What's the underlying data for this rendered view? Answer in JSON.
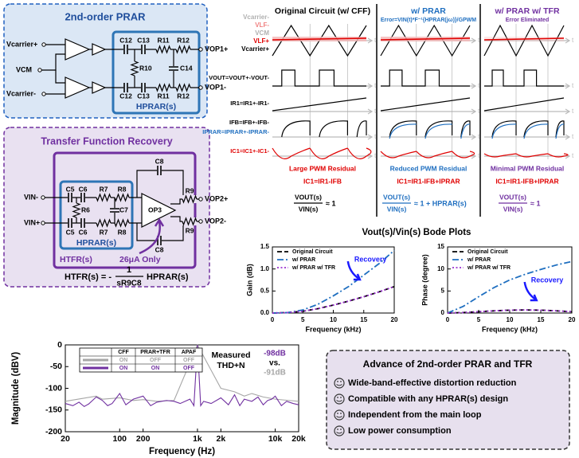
{
  "prar_circuit": {
    "title": "2nd-order PRAR",
    "inputs": [
      "Vcarrier+",
      "VCM",
      "Vcarrier-"
    ],
    "components": [
      "C12",
      "C13",
      "R11",
      "R12",
      "R10",
      "C14"
    ],
    "outputs": [
      "VOP1+",
      "VOP1-"
    ],
    "block": "HPRAR(s)"
  },
  "tfr_circuit": {
    "title": "Transfer Function Recovery",
    "inputs": [
      "VIN-",
      "VIN+"
    ],
    "components": [
      "C5",
      "C6",
      "R7",
      "R8",
      "R6",
      "C7",
      "C8",
      "OP3",
      "R9"
    ],
    "outputs": [
      "VOP2+",
      "VOP2-"
    ],
    "inner_block": "HPRAR(s)",
    "outer_block": "HTFR(s)",
    "annotation": "26μA Only",
    "formula": {
      "lhs": "HTFR(s) = -",
      "numerator": "1",
      "denominator": "sR9C8",
      "rhs": "HPRAR(s)"
    }
  },
  "waveforms": {
    "signal_labels": [
      {
        "text": "Vcarrier-",
        "color": "#b0b0b0"
      },
      {
        "text": "VLF-",
        "color": "#f08080"
      },
      {
        "text": "VCM",
        "color": "#b0b0b0"
      },
      {
        "text": "VLF+",
        "color": "#e00000"
      },
      {
        "text": "Vcarrier+",
        "color": "#000000"
      },
      {
        "text": "VOUT=VOUT+-VOUT-",
        "color": "#000000"
      },
      {
        "text": "IR1=IR1+-IR1-",
        "color": "#000000"
      },
      {
        "text": "IFB=IFB+-IFB-",
        "color": "#000000"
      },
      {
        "text": "IPRAR=IPRAR+-IPRAR-",
        "color": "#1f6fc0"
      },
      {
        "text": "IC1=IC1+-IC1-",
        "color": "#e00000"
      }
    ],
    "time_label": "t",
    "transfer_fraction": {
      "numerator": "VOUT(s)",
      "denominator": "VIN(s)"
    },
    "columns": [
      {
        "title": "Original Circuit (w/ CFF)",
        "color": "#000000",
        "residual": "Large PWM Residual",
        "current": "IC1=IR1-IFB",
        "transfer": "≈ 1"
      },
      {
        "title": "w/ PRAR",
        "color": "#1f6fc0",
        "note": "Error=VIN(t)*F⁻¹{HPRAR(jω)}/GPWM",
        "residual": "Reduced PWM Residual",
        "current": "IC1=IR1-IFB+IPRAR",
        "transfer": "≈ 1 + HPRAR(s)"
      },
      {
        "title": "w/ PRAR w/ TFR",
        "color": "#7030a0",
        "note": "Error Eliminated",
        "residual": "Minimal PWM Residual",
        "current": "IC1=IR1-IFB+IPRAR",
        "transfer": "≈ 1"
      }
    ]
  },
  "bode_title": "Vout(s)/Vin(s) Bode Plots",
  "chart_data": [
    {
      "type": "line",
      "x_label": "Frequency (kHz)",
      "y_label": "Gain (dB)",
      "x": [
        0,
        2.5,
        5,
        7.5,
        10,
        12.5,
        15,
        17.5,
        20
      ],
      "series": [
        {
          "name": "Original Circuit",
          "color": "#000000",
          "dash": "dash",
          "values": [
            0,
            0.01,
            0.04,
            0.1,
            0.18,
            0.27,
            0.37,
            0.48,
            0.6
          ]
        },
        {
          "name": "w/ PRAR",
          "color": "#1f6fc0",
          "dash": "dashdot",
          "values": [
            0,
            0.01,
            0.07,
            0.2,
            0.39,
            0.6,
            0.86,
            1.12,
            1.42
          ]
        },
        {
          "name": "w/ PRAR w/ TFR",
          "color": "#9b30d0",
          "dash": "dot",
          "values": [
            0,
            0.01,
            0.04,
            0.1,
            0.18,
            0.27,
            0.37,
            0.48,
            0.6
          ]
        }
      ],
      "xlim": [
        0,
        20
      ],
      "xticks": [
        0,
        5,
        10,
        15,
        20
      ],
      "ylim": [
        0,
        1.5
      ],
      "yticks": [
        {
          "value": 0,
          "label": "0.0"
        },
        0.5,
        {
          "value": 1,
          "label": "1.0"
        },
        1.5
      ],
      "legend": "top-left",
      "annotation": {
        "text": "Recovery",
        "color": "#1a1aff"
      }
    },
    {
      "type": "line",
      "x_label": "Frequency (kHz)",
      "y_label": "Phase (degree)",
      "x": [
        0,
        2.5,
        5,
        7.5,
        10,
        12.5,
        15,
        17.5,
        20
      ],
      "series": [
        {
          "name": "Original Circuit",
          "color": "#000000",
          "dash": "dash",
          "values": [
            0,
            0.1,
            0.3,
            0.5,
            0.65,
            0.7,
            0.65,
            0.5,
            0.3
          ]
        },
        {
          "name": "w/ PRAR",
          "color": "#1f6fc0",
          "dash": "dashdot",
          "values": [
            0,
            1.5,
            3.7,
            5.8,
            7.5,
            8.8,
            9.9,
            10.9,
            11.7
          ]
        },
        {
          "name": "w/ PRAR w/ TFR",
          "color": "#9b30d0",
          "dash": "dot",
          "values": [
            0,
            0.1,
            0.3,
            0.5,
            0.65,
            0.7,
            0.65,
            0.5,
            0.3
          ]
        }
      ],
      "xlim": [
        0,
        20
      ],
      "xticks": [
        0,
        5,
        10,
        15,
        20
      ],
      "ylim": [
        0,
        15
      ],
      "yticks": [
        0,
        5,
        10,
        15
      ],
      "legend": "top-left",
      "annotation": {
        "text": "Recovery",
        "color": "#1a1aff"
      }
    },
    {
      "type": "line",
      "x_label": "Frequency (Hz)",
      "y_label": "Magnitude (dBV)",
      "xscale": "log",
      "series": [
        {
          "color": "#a6a6a6",
          "dash": "solid",
          "x": [
            20,
            50,
            60,
            100,
            150,
            200,
            300,
            500,
            1000,
            2000,
            3000,
            4000,
            5000,
            7000,
            10000,
            15000,
            20000
          ],
          "values": [
            -130,
            -118,
            -125,
            -122,
            -128,
            -126,
            -130,
            -128,
            0,
            -100,
            -108,
            -118,
            -112,
            -120,
            -125,
            -128,
            -130
          ]
        },
        {
          "color": "#7030a0",
          "dash": "solid",
          "x": [
            20,
            25,
            30,
            35,
            40,
            50,
            60,
            70,
            80,
            100,
            120,
            150,
            200,
            250,
            300,
            400,
            500,
            600,
            800,
            900,
            1000,
            1100,
            1200,
            1500,
            2000,
            2500,
            3000,
            3500,
            4000,
            5000,
            6000,
            7000,
            8000,
            9000,
            10000,
            12000,
            14000,
            17000,
            20000
          ],
          "values": [
            -135,
            -140,
            -132,
            -142,
            -136,
            -120,
            -128,
            -140,
            -135,
            -112,
            -138,
            -125,
            -118,
            -140,
            -132,
            -128,
            -130,
            -135,
            -125,
            -140,
            0,
            -140,
            -130,
            -135,
            -122,
            -138,
            -115,
            -140,
            -125,
            -130,
            -120,
            -138,
            -128,
            -125,
            -118,
            -140,
            -130,
            -135,
            -138
          ]
        }
      ],
      "xlim": [
        20,
        20000
      ],
      "xticks": [
        20,
        100,
        200,
        {
          "value": 1000,
          "label": "1k"
        },
        {
          "value": 2000,
          "label": "2k"
        },
        {
          "value": 10000,
          "label": "10k"
        },
        {
          "value": 20000,
          "label": "20k"
        }
      ],
      "ylim": [
        -200,
        0
      ],
      "yticks": [
        0,
        -50,
        -100,
        -150,
        -200
      ],
      "table": {
        "header": [
          "CFF",
          "PRAR+TFR",
          "APAF"
        ],
        "rows": [
          [
            "ON",
            "OFF",
            "OFF"
          ],
          [
            "ON",
            "ON",
            "OFF"
          ]
        ]
      },
      "thd_label": [
        "Measured",
        "THD+N"
      ],
      "thd_values": [
        {
          "text": "-98dB",
          "color": "#7030a0"
        },
        {
          "text": "vs.",
          "color": "#000000"
        },
        {
          "text": "-91dB",
          "color": "#a6a6a6"
        }
      ]
    }
  ],
  "advantages": {
    "title": "Advance of 2nd-order PRAR and TFR",
    "items": [
      "Wide-band-effective distortion reduction",
      "Compatible with any HPRAR(s) design",
      "Independent from the main loop",
      "Low power consumption"
    ]
  }
}
